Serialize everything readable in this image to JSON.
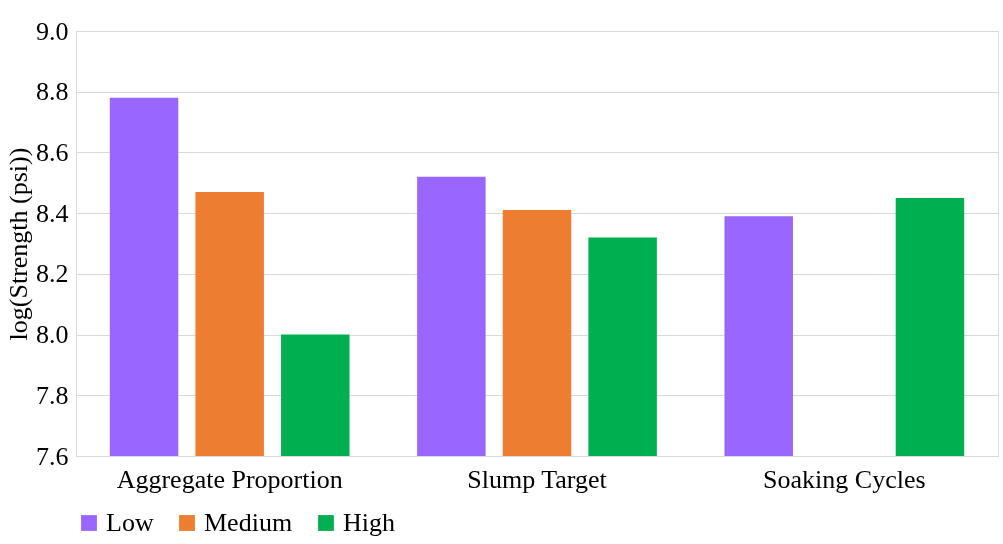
{
  "chart_data": {
    "type": "bar",
    "ylabel": "log(Strength (psi))",
    "categories": [
      "Aggregate Proportion",
      "Slump Target",
      "Soaking Cycles"
    ],
    "series": [
      {
        "name": "Low",
        "color": "#9966ff",
        "values": [
          8.78,
          8.52,
          8.39
        ]
      },
      {
        "name": "Medium",
        "color": "#ed7d31",
        "values": [
          8.47,
          8.41,
          null
        ]
      },
      {
        "name": "High",
        "color": "#00b050",
        "values": [
          8.0,
          8.32,
          8.45
        ]
      }
    ],
    "ylim": [
      7.6,
      9.0
    ],
    "yticks": [
      7.6,
      7.8,
      {
        "value": 8.0,
        "label": "8.0"
      },
      8.2,
      8.4,
      8.6,
      8.8,
      {
        "value": 9.0,
        "label": "9.0"
      }
    ],
    "grid": "y",
    "legend": "bottom"
  }
}
